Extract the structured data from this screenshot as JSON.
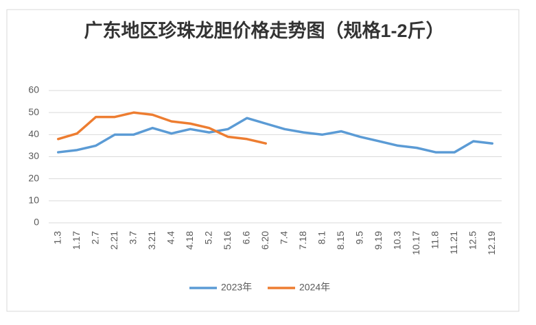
{
  "chart_data": {
    "type": "line",
    "title": "广东地区珍珠龙胆价格走势图（规格1-2斤）",
    "categories": [
      "1.3",
      "1.17",
      "2.7",
      "2.21",
      "3.7",
      "3.21",
      "4.4",
      "4.18",
      "5.2",
      "5.16",
      "6.6",
      "6.20",
      "7.4",
      "7.18",
      "8.1",
      "8.15",
      "9.5",
      "9.19",
      "10.3",
      "10.17",
      "11.8",
      "11.21",
      "12.5",
      "12.19"
    ],
    "series": [
      {
        "name": "2023年",
        "color": "#5b9bd5",
        "values": [
          32,
          33,
          35,
          40,
          40,
          43,
          40.5,
          42.5,
          41,
          42.5,
          47.5,
          45,
          42.5,
          41,
          40,
          41.5,
          39,
          37,
          35,
          34,
          32,
          32,
          37,
          36
        ]
      },
      {
        "name": "2024年",
        "color": "#ed7d31",
        "values": [
          38,
          40.5,
          48,
          48,
          50,
          49,
          46,
          45,
          43,
          39,
          38,
          36,
          null,
          null,
          null,
          null,
          null,
          null,
          null,
          null,
          null,
          null,
          null,
          null
        ]
      }
    ],
    "ylim": [
      0,
      60
    ],
    "yticks": [
      0,
      10,
      20,
      30,
      40,
      50,
      60
    ],
    "grid": true,
    "legend": "bottom"
  }
}
